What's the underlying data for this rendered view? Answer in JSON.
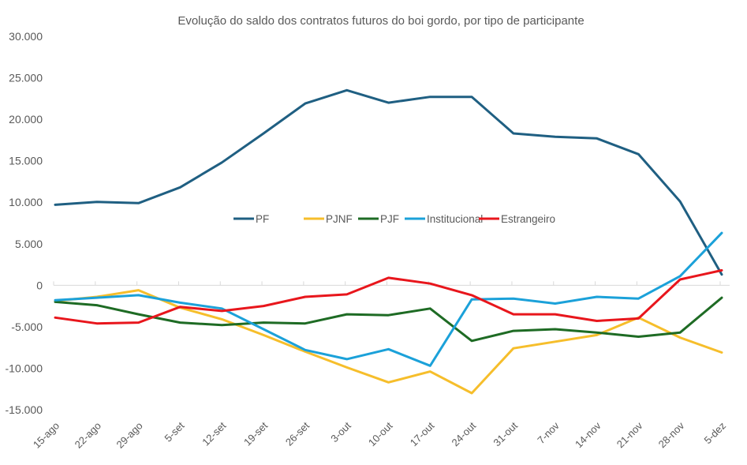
{
  "chart_data": {
    "type": "line",
    "title": "Evolução do saldo dos contratos futuros do boi gordo, por tipo de participante",
    "xlabel": "",
    "ylabel": "",
    "ylim": [
      -15000,
      30000
    ],
    "yticks": [
      30000,
      25000,
      20000,
      15000,
      10000,
      5000,
      0,
      -5000,
      -10000,
      -15000
    ],
    "ytick_labels": [
      "30.000",
      "25.000",
      "20.000",
      "15.000",
      "10.000",
      "5.000",
      "0",
      "-5.000",
      "-10.000",
      "-15.000"
    ],
    "grid": false,
    "legend_position": "center",
    "categories": [
      "15-ago",
      "22-ago",
      "29-ago",
      "5-set",
      "12-set",
      "19-set",
      "26-set",
      "3-out",
      "10-out",
      "17-out",
      "24-out",
      "31-out",
      "7-nov",
      "14-nov",
      "21-nov",
      "28-nov",
      "5-dez"
    ],
    "series": [
      {
        "name": "PF",
        "color": "#1F5F82",
        "values": [
          9700,
          10050,
          9900,
          11800,
          14800,
          18300,
          21900,
          23500,
          22000,
          22700,
          22700,
          18300,
          17900,
          17700,
          15800,
          10100,
          1300
        ]
      },
      {
        "name": "PJNF",
        "color": "#F6BE2B",
        "values": [
          -1900,
          -1400,
          -600,
          -2700,
          -4100,
          -6000,
          -8000,
          -9900,
          -11700,
          -10400,
          -13000,
          -7600,
          -6800,
          -6000,
          -3900,
          -6300,
          -8100
        ]
      },
      {
        "name": "PJF",
        "color": "#1E6B24",
        "values": [
          -2000,
          -2400,
          -3500,
          -4500,
          -4800,
          -4500,
          -4600,
          -3500,
          -3600,
          -2800,
          -6700,
          -5500,
          -5300,
          -5700,
          -6200,
          -5700,
          -1500
        ]
      },
      {
        "name": "Institucional",
        "color": "#1BA1D9",
        "values": [
          -1800,
          -1500,
          -1200,
          -2100,
          -2800,
          -5300,
          -7800,
          -8900,
          -7700,
          -9700,
          -1700,
          -1600,
          -2200,
          -1400,
          -1600,
          1100,
          6300
        ]
      },
      {
        "name": "Estrangeiro",
        "color": "#E8161C",
        "values": [
          -3900,
          -4600,
          -4500,
          -2600,
          -3100,
          -2500,
          -1400,
          -1100,
          900,
          200,
          -1200,
          -3500,
          -3500,
          -4300,
          -4000,
          700,
          1800
        ]
      }
    ]
  }
}
